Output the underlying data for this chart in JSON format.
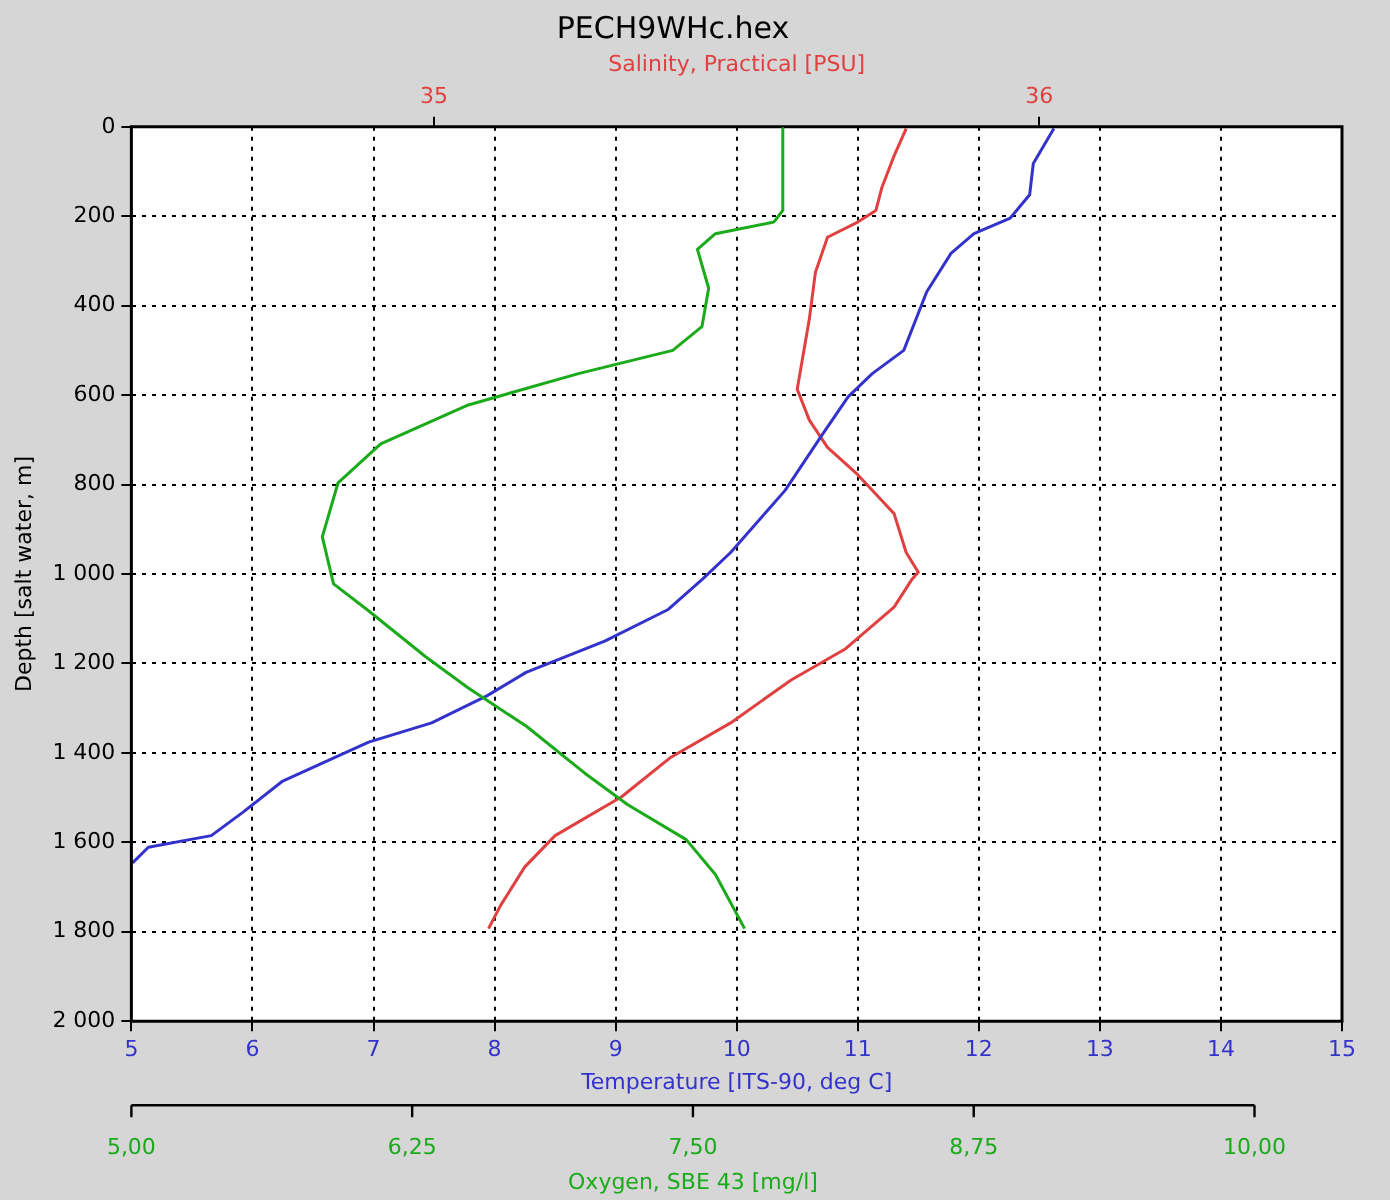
{
  "chart_data": [
    {
      "type": "line",
      "title": "PECH9WHc.hex",
      "xlabel": "Temperature [ITS-90, deg C]",
      "x2label": "Salinity, Practical [PSU]",
      "ylabel": "Depth [salt water, m]",
      "xlim": [
        5,
        15
      ],
      "xticks": [
        5,
        6,
        7,
        8,
        9,
        10,
        11,
        12,
        13,
        14,
        15
      ],
      "x2lim": [
        34.5,
        36.5
      ],
      "x2ticks": [
        35,
        36
      ],
      "ylim": [
        2000,
        0
      ],
      "yticks": [
        0,
        200,
        400,
        600,
        800,
        {
          "value": 1000,
          "label": "1 000"
        },
        {
          "value": 1200,
          "label": "1 200"
        },
        {
          "value": 1400,
          "label": "1 400"
        },
        {
          "value": 1600,
          "label": "1 600"
        },
        {
          "value": 1800,
          "label": "1 800"
        },
        {
          "value": 2000,
          "label": "2 000"
        }
      ],
      "grid": true,
      "series": [
        {
          "color": "#3333cc",
          "x": [
            12.62,
            12.45,
            12.42,
            12.26,
            11.96,
            11.77,
            11.57,
            11.38,
            11.12,
            10.92,
            10.7,
            10.4,
            9.95,
            9.72,
            9.43,
            8.91,
            8.26,
            7.94,
            7.48,
            6.96,
            6.25,
            5.92,
            5.66,
            5.14,
            5.01
          ],
          "values": [
            4,
            82,
            152,
            204,
            239,
            283,
            369,
            500,
            552,
            604,
            691,
            813,
            952,
            1011,
            1080,
            1150,
            1220,
            1272,
            1333,
            1376,
            1463,
            1533,
            1585,
            1611,
            1646
          ]
        },
        {
          "color": "#e04040",
          "axis": "x2",
          "x": [
            35.78,
            35.76,
            35.74,
            35.73,
            35.7,
            35.65,
            35.63,
            35.62,
            35.6,
            35.62,
            35.65,
            35.7,
            35.76,
            35.78,
            35.8,
            35.79,
            35.76,
            35.68,
            35.59,
            35.49,
            35.39,
            35.31,
            35.2,
            35.15,
            35.11,
            35.09
          ],
          "values": [
            4,
            65,
            135,
            187,
            213,
            247,
            326,
            430,
            587,
            656,
            717,
            778,
            865,
            952,
            996,
            1011,
            1074,
            1167,
            1237,
            1333,
            1411,
            1498,
            1585,
            1655,
            1741,
            1793
          ]
        }
      ]
    },
    {
      "type": "line",
      "xlabel": "Oxygen, SBE 43 [mg/l]",
      "xlim": [
        5,
        10
      ],
      "xticks": [
        {
          "value": 5,
          "label": "5,00"
        },
        {
          "value": 6.25,
          "label": "6,25"
        },
        {
          "value": 7.5,
          "label": "7,50"
        },
        {
          "value": 8.75,
          "label": "8,75"
        },
        {
          "value": 10,
          "label": "10,00"
        }
      ],
      "ylim": [
        2000,
        0
      ],
      "tick_labels": "x",
      "series": [
        {
          "color": "#1aaa1a",
          "x": [
            7.9,
            7.9,
            7.86,
            7.6,
            7.52,
            7.57,
            7.54,
            7.41,
            6.99,
            6.5,
            6.11,
            5.92,
            5.85,
            5.9,
            6.05,
            6.31,
            6.5,
            6.76,
            7.02,
            7.21,
            7.47,
            7.6,
            7.73
          ],
          "values": [
            4,
            187,
            213,
            239,
            274,
            361,
            447,
            500,
            552,
            622,
            709,
            796,
            917,
            1022,
            1080,
            1185,
            1255,
            1341,
            1446,
            1516,
            1594,
            1672,
            1793
          ]
        }
      ]
    }
  ]
}
